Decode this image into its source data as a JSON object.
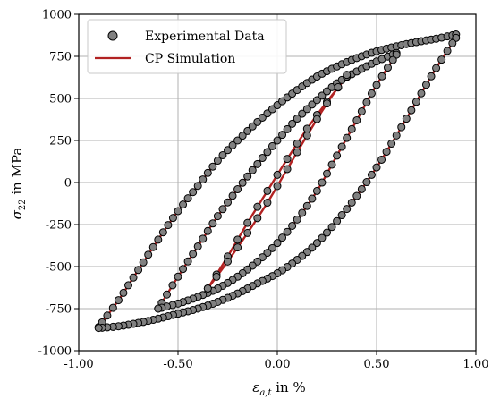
{
  "chart_data": {
    "type": "scatter",
    "xlabel": "ε_{a,t} in %",
    "ylabel": "σ_22 in MPa",
    "xlim": [
      -1.0,
      1.0
    ],
    "ylim": [
      -1000,
      1000
    ],
    "xticks": [
      "-1.00",
      "-0.50",
      "0.00",
      "0.50",
      "1.00"
    ],
    "yticks": [
      "-1000",
      "-750",
      "-500",
      "-250",
      "0",
      "250",
      "500",
      "750",
      "1000"
    ],
    "grid": true,
    "legend_position": "top-left",
    "legend": [
      "Experimental Data",
      "CP Simulation"
    ],
    "colors": {
      "marker_fill": "#808080",
      "marker_edge": "#000000",
      "simulation_line": "#b22222"
    },
    "loops": [
      {
        "amplitude_strain": 0.9,
        "upper_branch": [
          [
            -0.9,
            -860
          ],
          [
            -0.8,
            -700
          ],
          [
            -0.7,
            -520
          ],
          [
            -0.6,
            -340
          ],
          [
            -0.5,
            -170
          ],
          [
            -0.4,
            -20
          ],
          [
            -0.3,
            130
          ],
          [
            -0.2,
            250
          ],
          [
            -0.1,
            360
          ],
          [
            0.0,
            460
          ],
          [
            0.1,
            550
          ],
          [
            0.2,
            630
          ],
          [
            0.3,
            690
          ],
          [
            0.4,
            740
          ],
          [
            0.5,
            780
          ],
          [
            0.6,
            810
          ],
          [
            0.7,
            835
          ],
          [
            0.8,
            855
          ],
          [
            0.9,
            880
          ]
        ],
        "lower_branch": [
          [
            0.9,
            860
          ],
          [
            0.8,
            680
          ],
          [
            0.7,
            480
          ],
          [
            0.6,
            280
          ],
          [
            0.5,
            90
          ],
          [
            0.4,
            -80
          ],
          [
            0.3,
            -230
          ],
          [
            0.2,
            -360
          ],
          [
            0.1,
            -460
          ],
          [
            0.0,
            -540
          ],
          [
            -0.1,
            -600
          ],
          [
            -0.2,
            -660
          ],
          [
            -0.3,
            -710
          ],
          [
            -0.4,
            -750
          ],
          [
            -0.5,
            -780
          ],
          [
            -0.6,
            -810
          ],
          [
            -0.7,
            -835
          ],
          [
            -0.8,
            -855
          ],
          [
            -0.9,
            -865
          ]
        ]
      },
      {
        "amplitude_strain": 0.6,
        "upper_branch": [
          [
            -0.6,
            -750
          ],
          [
            -0.5,
            -560
          ],
          [
            -0.4,
            -380
          ],
          [
            -0.3,
            -200
          ],
          [
            -0.2,
            -40
          ],
          [
            -0.1,
            110
          ],
          [
            0.0,
            250
          ],
          [
            0.1,
            380
          ],
          [
            0.2,
            490
          ],
          [
            0.3,
            590
          ],
          [
            0.4,
            660
          ],
          [
            0.5,
            720
          ],
          [
            0.6,
            770
          ]
        ],
        "lower_branch": [
          [
            0.6,
            760
          ],
          [
            0.5,
            580
          ],
          [
            0.4,
            370
          ],
          [
            0.3,
            160
          ],
          [
            0.2,
            -50
          ],
          [
            0.1,
            -220
          ],
          [
            0.0,
            -360
          ],
          [
            -0.1,
            -470
          ],
          [
            -0.2,
            -560
          ],
          [
            -0.3,
            -630
          ],
          [
            -0.4,
            -680
          ],
          [
            -0.5,
            -720
          ],
          [
            -0.6,
            -750
          ]
        ]
      },
      {
        "amplitude_strain": 0.35,
        "upper_branch": [
          [
            -0.35,
            -630
          ],
          [
            -0.25,
            -440
          ],
          [
            -0.15,
            -240
          ],
          [
            -0.05,
            -50
          ],
          [
            0.05,
            140
          ],
          [
            0.15,
            320
          ],
          [
            0.25,
            480
          ],
          [
            0.35,
            630
          ]
        ],
        "lower_branch": [
          [
            0.35,
            640
          ],
          [
            0.25,
            470
          ],
          [
            0.15,
            280
          ],
          [
            0.05,
            80
          ],
          [
            -0.05,
            -120
          ],
          [
            -0.15,
            -300
          ],
          [
            -0.25,
            -470
          ],
          [
            -0.35,
            -630
          ]
        ]
      }
    ]
  }
}
